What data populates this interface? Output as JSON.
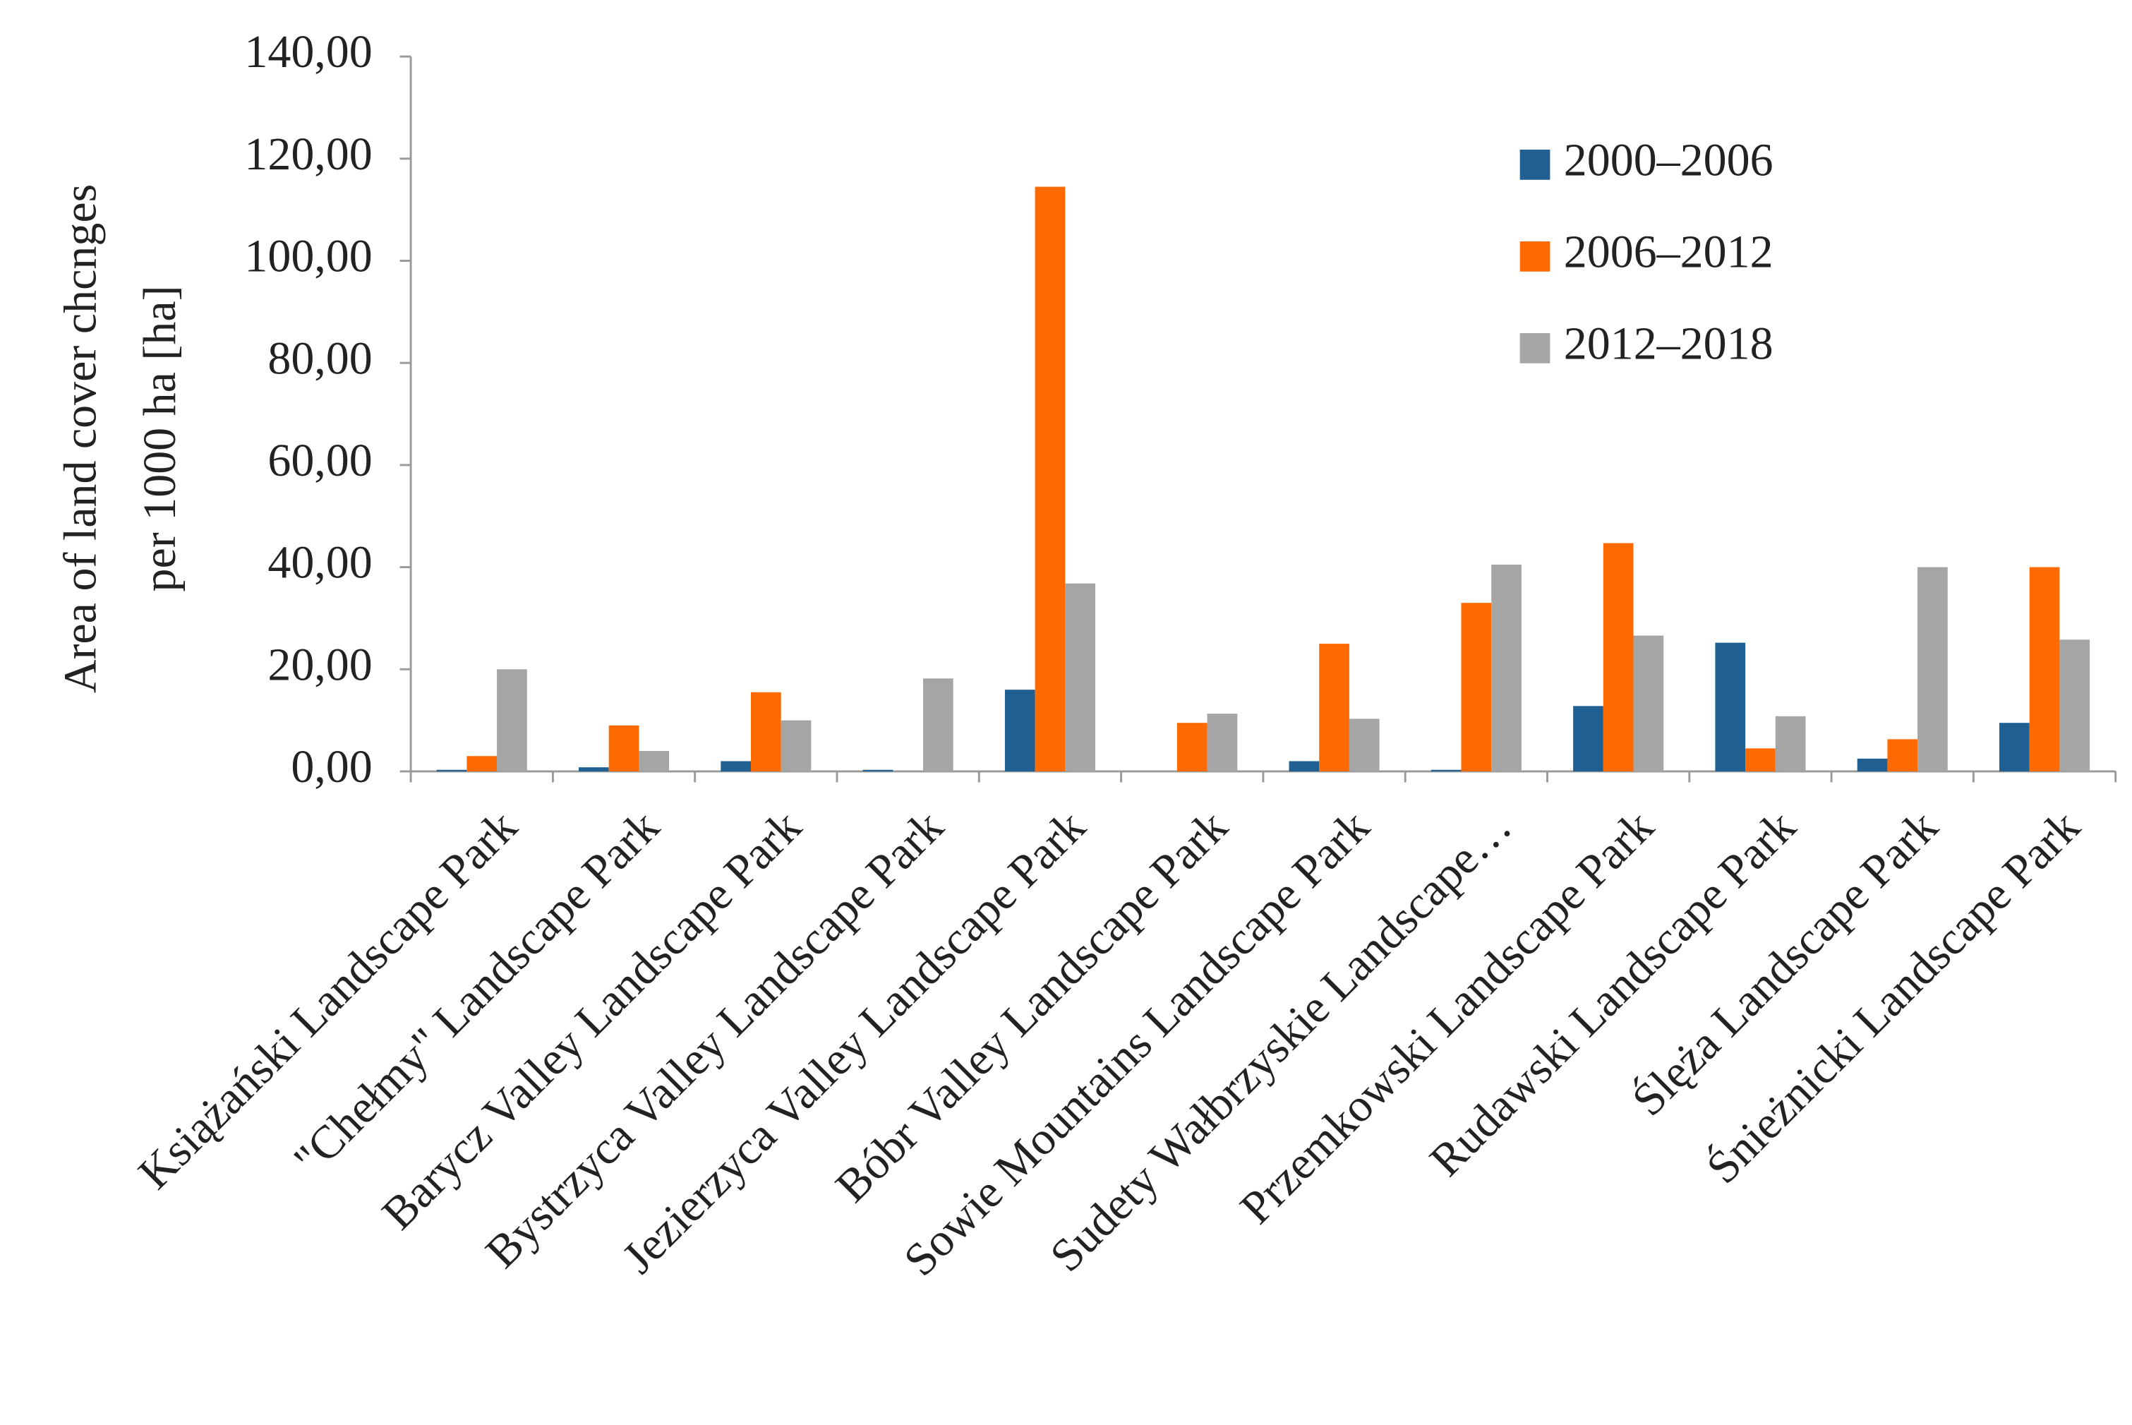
{
  "chart_data": {
    "type": "bar",
    "ylabel": [
      "Area of land cover chcnges",
      "per 1000 ha [ha]"
    ],
    "categories": [
      "Książański Landscape Park",
      "\"Chełmy\" Landscape Park",
      "Barycz Valley Landscape Park",
      "Bystrzyca Valley Landscape Park",
      "Jezierzyca Valley Landscape Park",
      "Bóbr Valley Landscape Park",
      "Sowie Mountains Landscape Park",
      "Sudety Wałbrzyskie Landscape…",
      "Przemkowski Landscape Park",
      "Rudawski Landscape Park",
      "Ślęża Landscape Park",
      "Śnieżnicki Landscape Park"
    ],
    "series": [
      {
        "name": "2000–2006",
        "color": "#1f5f91",
        "values": [
          0.3,
          0.8,
          2,
          0.3,
          16,
          0,
          2,
          0.3,
          12.8,
          25.2,
          2.5,
          9.5
        ]
      },
      {
        "name": "2006–2012",
        "color": "#ff6a00",
        "values": [
          3,
          9,
          15.5,
          0,
          114.5,
          9.5,
          25,
          33,
          44.7,
          4.5,
          6.3,
          40
        ]
      },
      {
        "name": "2012–2018",
        "color": "#a5a5a5",
        "values": [
          20,
          4,
          10,
          18.2,
          36.8,
          11.3,
          10.3,
          40.5,
          26.6,
          10.8,
          40,
          25.8
        ]
      }
    ],
    "ylim": [
      0,
      140
    ],
    "yticks": [
      {
        "value": 0,
        "label": "0,00"
      },
      {
        "value": 20,
        "label": "20,00"
      },
      {
        "value": 40,
        "label": "40,00"
      },
      {
        "value": 60,
        "label": "60,00"
      },
      {
        "value": 80,
        "label": "80,00"
      },
      {
        "value": 100,
        "label": "100,00"
      },
      {
        "value": 120,
        "label": "120,00"
      },
      {
        "value": 140,
        "label": "140,00"
      }
    ],
    "legend": "upper right"
  }
}
